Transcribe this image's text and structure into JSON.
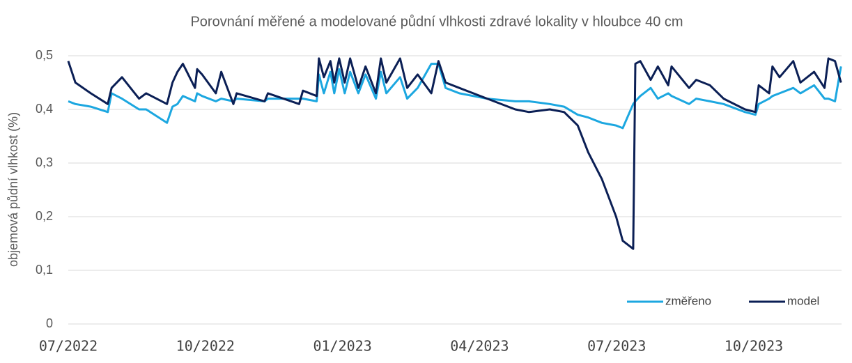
{
  "chart_data": {
    "type": "line",
    "title": "Porovnání měřené a modelované půdní vlhkosti zdravé lokality v hloubce 40 cm",
    "ylabel": "objemová půdní vlhkost (%)",
    "x": [
      2022.5,
      2022.513,
      2022.541,
      2022.572,
      2022.579,
      2022.598,
      2022.629,
      2022.642,
      2022.68,
      2022.69,
      2022.699,
      2022.709,
      2022.731,
      2022.735,
      2022.744,
      2022.769,
      2022.779,
      2022.801,
      2022.807,
      2022.858,
      2022.864,
      2022.921,
      2022.928,
      2022.953,
      2022.957,
      2022.966,
      2022.978,
      2022.985,
      2022.994,
      2023.004,
      2023.014,
      2023.029,
      2023.042,
      2023.061,
      2023.07,
      2023.08,
      2023.105,
      2023.118,
      2023.137,
      2023.162,
      2023.175,
      2023.188,
      2023.213,
      2023.264,
      2023.315,
      2023.34,
      2023.378,
      2023.404,
      2023.429,
      2023.448,
      2023.473,
      2023.499,
      2023.511,
      2023.53,
      2023.534,
      2023.543,
      2023.562,
      2023.575,
      2023.594,
      2023.6,
      2023.632,
      2023.645,
      2023.67,
      2023.695,
      2023.734,
      2023.753,
      2023.759,
      2023.778,
      2023.784,
      2023.797,
      2023.822,
      2023.835,
      2023.86,
      2023.879,
      2023.886,
      2023.898,
      2023.909
    ],
    "series": [
      {
        "name": "změřeno",
        "color": "#1ca7e0",
        "values": [
          0.415,
          0.41,
          0.405,
          0.395,
          0.43,
          0.42,
          0.4,
          0.4,
          0.375,
          0.405,
          0.41,
          0.425,
          0.415,
          0.43,
          0.425,
          0.415,
          0.42,
          0.415,
          0.42,
          0.415,
          0.42,
          0.42,
          0.42,
          0.415,
          0.465,
          0.43,
          0.47,
          0.43,
          0.475,
          0.43,
          0.47,
          0.43,
          0.465,
          0.42,
          0.47,
          0.43,
          0.46,
          0.42,
          0.44,
          0.485,
          0.485,
          0.44,
          0.43,
          0.42,
          0.415,
          0.415,
          0.41,
          0.405,
          0.39,
          0.385,
          0.375,
          0.37,
          0.365,
          0.41,
          0.415,
          0.425,
          0.44,
          0.42,
          0.43,
          0.425,
          0.41,
          0.42,
          0.415,
          0.41,
          0.395,
          0.39,
          0.41,
          0.42,
          0.425,
          0.43,
          0.44,
          0.43,
          0.445,
          0.42,
          0.42,
          0.415,
          0.48
        ]
      },
      {
        "name": "model",
        "color": "#0b1f55",
        "values": [
          0.49,
          0.45,
          0.43,
          0.41,
          0.44,
          0.46,
          0.42,
          0.43,
          0.41,
          0.45,
          0.47,
          0.485,
          0.44,
          0.475,
          0.465,
          0.43,
          0.47,
          0.41,
          0.43,
          0.415,
          0.43,
          0.41,
          0.435,
          0.425,
          0.495,
          0.46,
          0.49,
          0.45,
          0.495,
          0.45,
          0.495,
          0.44,
          0.48,
          0.43,
          0.495,
          0.45,
          0.495,
          0.44,
          0.465,
          0.43,
          0.49,
          0.45,
          0.44,
          0.42,
          0.4,
          0.395,
          0.4,
          0.395,
          0.37,
          0.32,
          0.27,
          0.2,
          0.155,
          0.14,
          0.485,
          0.49,
          0.455,
          0.48,
          0.445,
          0.48,
          0.44,
          0.455,
          0.445,
          0.42,
          0.4,
          0.395,
          0.445,
          0.43,
          0.48,
          0.46,
          0.49,
          0.45,
          0.47,
          0.44,
          0.495,
          0.49,
          0.45
        ]
      }
    ],
    "xlim": [
      2022.5,
      2023.91
    ],
    "xticks": [
      {
        "value": 2022.5,
        "label": "07/2022"
      },
      {
        "value": 2022.75,
        "label": "10/2022"
      },
      {
        "value": 2023.0,
        "label": "01/2023"
      },
      {
        "value": 2023.25,
        "label": "04/2023"
      },
      {
        "value": 2023.5,
        "label": "07/2023"
      },
      {
        "value": 2023.75,
        "label": "10/2023"
      }
    ],
    "ylim": [
      0,
      0.5
    ],
    "yticks": [
      0,
      {
        "value": 0.1,
        "label": "0,1"
      },
      {
        "value": 0.2,
        "label": "0,2"
      },
      {
        "value": 0.3,
        "label": "0,3"
      },
      {
        "value": 0.4,
        "label": "0,4"
      },
      {
        "value": 0.5,
        "label": "0,5"
      }
    ],
    "grid": true,
    "legend": "lower right"
  }
}
